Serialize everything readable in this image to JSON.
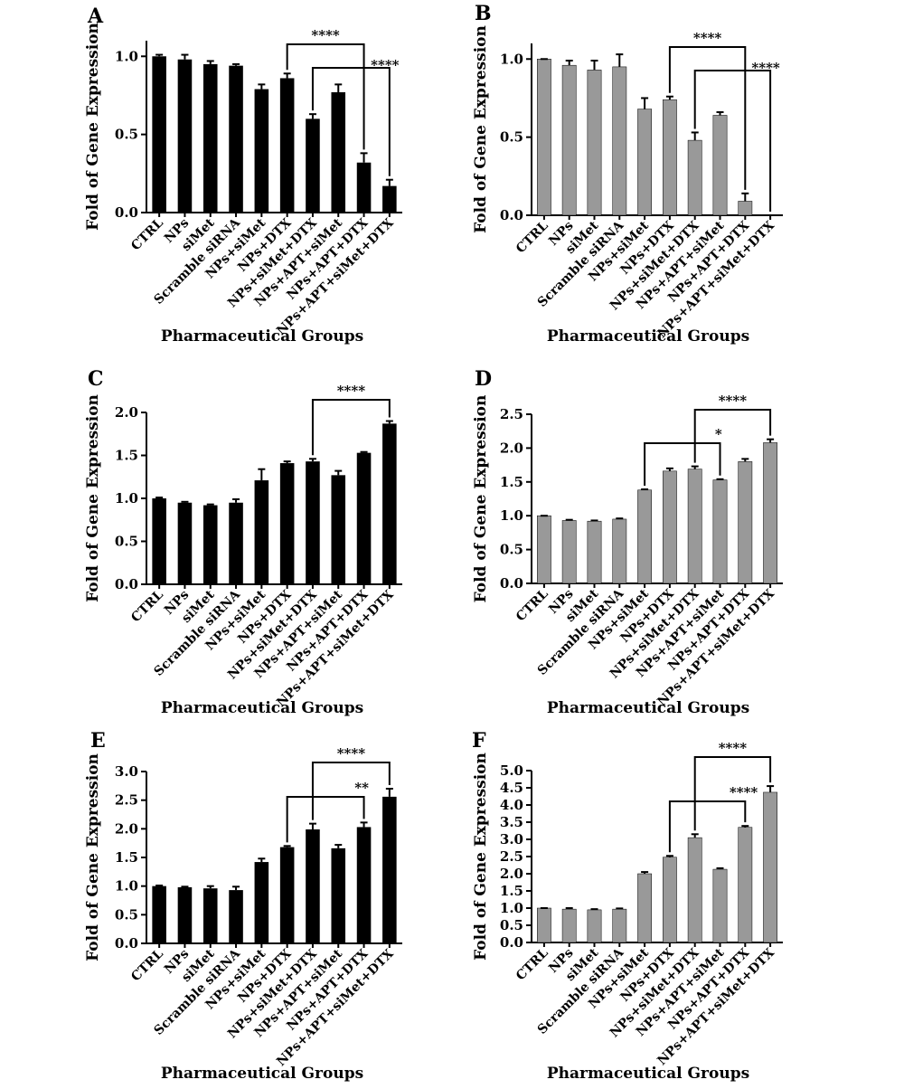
{
  "chart_data": [
    {
      "panel": "A",
      "type": "bar",
      "color": "#000000",
      "ylabel": "Fold of Gene Expression",
      "xlabel": "Pharmaceutical Groups",
      "ylim": [
        0,
        1.1
      ],
      "yticks": [
        "0.0",
        "0.5",
        "1.0"
      ],
      "categories": [
        "CTRL",
        "NPs",
        "siMet",
        "Scramble siRNA",
        "NPs+siMet",
        "NPs+DTX",
        "NPs+siMet+DTX",
        "NPs+APT+siMet",
        "NPs+APT+DTX",
        "NPs+APT+siMet+DTX"
      ],
      "values": [
        1.0,
        0.98,
        0.95,
        0.94,
        0.79,
        0.86,
        0.6,
        0.77,
        0.32,
        0.17
      ],
      "errors": [
        0.01,
        0.03,
        0.02,
        0.01,
        0.03,
        0.03,
        0.03,
        0.05,
        0.06,
        0.04
      ],
      "significance": [
        {
          "from": 5,
          "to": 8,
          "label": "****"
        },
        {
          "from": 6,
          "to": 9,
          "label": "****"
        }
      ]
    },
    {
      "panel": "B",
      "type": "bar",
      "color": "#999999",
      "ylabel": "Fold of Gene Expression",
      "xlabel": "Pharmaceutical Groups",
      "ylim": [
        0,
        1.1
      ],
      "yticks": [
        "0.0",
        "0.5",
        "1.0"
      ],
      "categories": [
        "CTRL",
        "NPs",
        "siMet",
        "Scramble siRNA",
        "NPs+siMet",
        "NPs+DTX",
        "NPs+siMet+DTX",
        "NPs+APT+siMet",
        "NPs+APT+DTX",
        "NPs+APT+siMet+DTX"
      ],
      "values": [
        1.0,
        0.96,
        0.93,
        0.95,
        0.68,
        0.74,
        0.48,
        0.64,
        0.09,
        0.0
      ],
      "errors": [
        0.0,
        0.03,
        0.06,
        0.08,
        0.07,
        0.02,
        0.05,
        0.02,
        0.05,
        0.0
      ],
      "significance": [
        {
          "from": 5,
          "to": 8,
          "label": "****"
        },
        {
          "from": 6,
          "to": 9,
          "label": "****"
        }
      ]
    },
    {
      "panel": "C",
      "type": "bar",
      "color": "#000000",
      "ylabel": "Fold of Gene Expression",
      "xlabel": "Pharmaceutical Groups",
      "ylim": [
        0,
        2.0
      ],
      "yticks": [
        "0.0",
        "0.5",
        "1.0",
        "1.5",
        "2.0"
      ],
      "categories": [
        "CTRL",
        "NPs",
        "siMet",
        "Scramble siRNA",
        "NPs+siMet",
        "NPs+DTX",
        "NPs+siMet+DTX",
        "NPs+APT+siMet",
        "NPs+APT+DTX",
        "NPs+APT+siMet+DTX"
      ],
      "values": [
        1.0,
        0.95,
        0.92,
        0.95,
        1.21,
        1.41,
        1.43,
        1.27,
        1.53,
        1.87
      ],
      "errors": [
        0.01,
        0.01,
        0.01,
        0.04,
        0.13,
        0.02,
        0.03,
        0.05,
        0.01,
        0.03
      ],
      "significance": [
        {
          "from": 6,
          "to": 9,
          "label": "****"
        }
      ]
    },
    {
      "panel": "D",
      "type": "bar",
      "color": "#999999",
      "ylabel": "Fold of Gene Expression",
      "xlabel": "Pharmaceutical Groups",
      "ylim": [
        0,
        2.5
      ],
      "yticks": [
        "0.0",
        "0.5",
        "1.0",
        "1.5",
        "2.0",
        "2.5"
      ],
      "categories": [
        "CTRL",
        "NPs",
        "siMet",
        "Scramble siRNA",
        "NPs+siMet",
        "NPs+DTX",
        "NPs+siMet+DTX",
        "NPs+APT+siMet",
        "NPs+APT+DTX",
        "NPs+APT+siMet+DTX"
      ],
      "values": [
        1.0,
        0.93,
        0.92,
        0.95,
        1.38,
        1.66,
        1.69,
        1.53,
        1.8,
        2.08
      ],
      "errors": [
        0.0,
        0.01,
        0.01,
        0.01,
        0.01,
        0.04,
        0.04,
        0.01,
        0.04,
        0.05
      ],
      "significance": [
        {
          "from": 4,
          "to": 7,
          "label": "*"
        },
        {
          "from": 6,
          "to": 9,
          "label": "****"
        }
      ]
    },
    {
      "panel": "E",
      "type": "bar",
      "color": "#000000",
      "ylabel": "Fold of Gene Expression",
      "xlabel": "Pharmaceutical Groups",
      "ylim": [
        0,
        3.0
      ],
      "yticks": [
        "0.0",
        "0.5",
        "1.0",
        "1.5",
        "2.0",
        "2.5",
        "3.0"
      ],
      "categories": [
        "CTRL",
        "NPs",
        "siMet",
        "Scramble siRNA",
        "NPs+siMet",
        "NPs+DTX",
        "NPs+siMet+DTX",
        "NPs+APT+siMet",
        "NPs+APT+DTX",
        "NPs+APT+siMet+DTX"
      ],
      "values": [
        1.0,
        0.98,
        0.96,
        0.93,
        1.42,
        1.68,
        1.99,
        1.66,
        2.03,
        2.56
      ],
      "errors": [
        0.01,
        0.01,
        0.04,
        0.06,
        0.06,
        0.02,
        0.1,
        0.06,
        0.08,
        0.14
      ],
      "significance": [
        {
          "from": 5,
          "to": 8,
          "label": "**"
        },
        {
          "from": 6,
          "to": 9,
          "label": "****"
        }
      ]
    },
    {
      "panel": "F",
      "type": "bar",
      "color": "#999999",
      "ylabel": "Fold of Gene Expression",
      "xlabel": "Pharmaceutical Groups",
      "ylim": [
        0,
        5.0
      ],
      "yticks": [
        "0.0",
        "0.5",
        "1.0",
        "1.5",
        "2.0",
        "2.5",
        "3.0",
        "3.5",
        "4.0",
        "4.5",
        "5.0"
      ],
      "categories": [
        "CTRL",
        "NPs",
        "siMet",
        "Scramble siRNA",
        "NPs+siMet",
        "NPs+DTX",
        "NPs+siMet+DTX",
        "NPs+APT+siMet",
        "NPs+APT+DTX",
        "NPs+APT+siMet+DTX"
      ],
      "values": [
        1.0,
        0.97,
        0.95,
        0.97,
        2.0,
        2.48,
        3.05,
        2.13,
        3.35,
        4.37
      ],
      "errors": [
        0.0,
        0.03,
        0.02,
        0.02,
        0.05,
        0.04,
        0.1,
        0.03,
        0.04,
        0.18
      ],
      "significance": [
        {
          "from": 5,
          "to": 8,
          "label": "****"
        },
        {
          "from": 6,
          "to": 9,
          "label": "****"
        }
      ]
    }
  ]
}
